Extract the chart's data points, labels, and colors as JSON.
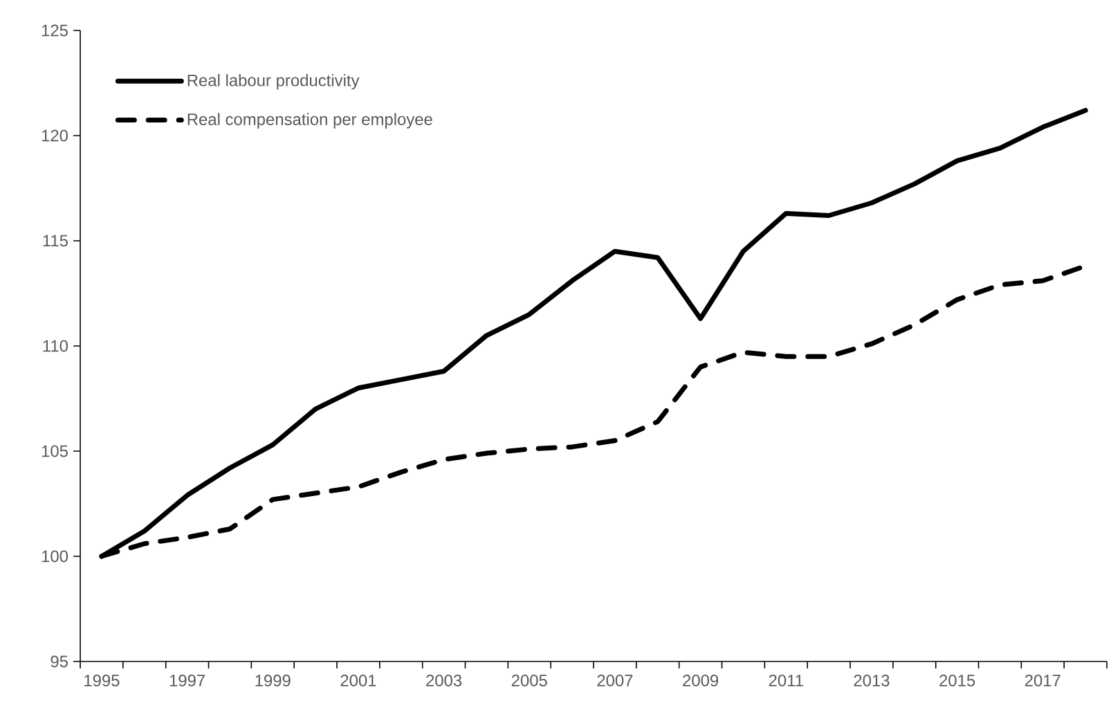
{
  "chart_data": {
    "type": "line",
    "categories": [
      "1995",
      null,
      "1997",
      null,
      "1999",
      null,
      "2001",
      null,
      "2003",
      null,
      "2005",
      null,
      "2007",
      null,
      "2009",
      null,
      "2011",
      null,
      "2013",
      null,
      "2015",
      null,
      "2017",
      null
    ],
    "series": [
      {
        "name": "Real labour productivity",
        "color": "#000000",
        "line_style": "solid",
        "values": [
          100,
          101.2,
          102.9,
          104.2,
          105.3,
          107.0,
          108.0,
          108.4,
          108.8,
          110.5,
          111.5,
          113.1,
          114.5,
          114.2,
          111.3,
          114.5,
          116.3,
          116.2,
          116.8,
          117.7,
          118.8,
          119.4,
          120.4,
          121.2
        ]
      },
      {
        "name": "Real compensation per employee",
        "color": "#000000",
        "line_style": "dashed",
        "values": [
          100,
          100.6,
          100.9,
          101.3,
          102.7,
          103.0,
          103.3,
          104.0,
          104.6,
          104.9,
          105.1,
          105.2,
          105.5,
          106.4,
          109.0,
          109.7,
          109.5,
          109.5,
          110.1,
          111.0,
          112.2,
          112.9,
          113.1,
          113.8
        ]
      }
    ],
    "ylim": [
      95,
      125
    ],
    "yticks": [
      95,
      100,
      105,
      110,
      115,
      120,
      125
    ],
    "grid": false,
    "legend": "top left",
    "marker": "none"
  }
}
